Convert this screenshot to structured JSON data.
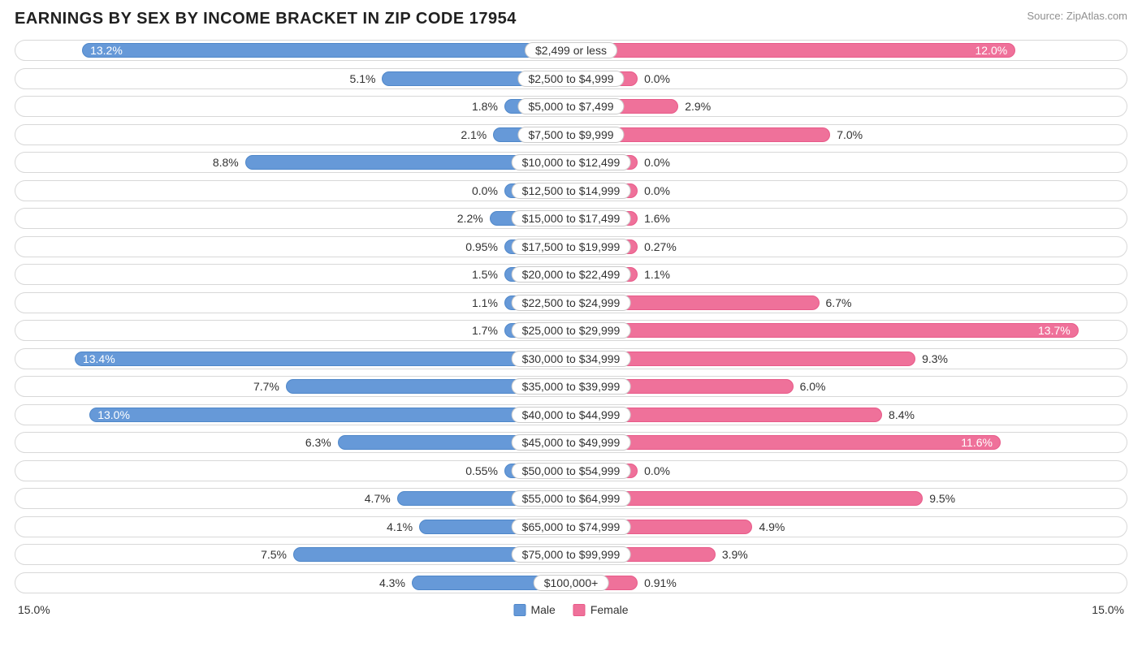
{
  "title": "EARNINGS BY SEX BY INCOME BRACKET IN ZIP CODE 17954",
  "source": "Source: ZipAtlas.com",
  "axis_max_pct": 15.0,
  "axis_label_left": "15.0%",
  "axis_label_right": "15.0%",
  "colors": {
    "male_fill": "#6699d8",
    "male_stroke": "#4f87c9",
    "female_fill": "#ef719a",
    "female_stroke": "#e85a89",
    "track_border": "#d8d8d8",
    "text": "#323232",
    "pill_border": "#cccccc",
    "background": "#ffffff"
  },
  "legend": {
    "male": "Male",
    "female": "Female"
  },
  "inside_threshold_pct": 10.0,
  "rows": [
    {
      "category": "$2,499 or less",
      "male": 13.2,
      "male_label": "13.2%",
      "female": 12.0,
      "female_label": "12.0%"
    },
    {
      "category": "$2,500 to $4,999",
      "male": 5.1,
      "male_label": "5.1%",
      "female": 0.0,
      "female_label": "0.0%"
    },
    {
      "category": "$5,000 to $7,499",
      "male": 1.8,
      "male_label": "1.8%",
      "female": 2.9,
      "female_label": "2.9%"
    },
    {
      "category": "$7,500 to $9,999",
      "male": 2.1,
      "male_label": "2.1%",
      "female": 7.0,
      "female_label": "7.0%"
    },
    {
      "category": "$10,000 to $12,499",
      "male": 8.8,
      "male_label": "8.8%",
      "female": 0.0,
      "female_label": "0.0%"
    },
    {
      "category": "$12,500 to $14,999",
      "male": 0.0,
      "male_label": "0.0%",
      "female": 0.0,
      "female_label": "0.0%"
    },
    {
      "category": "$15,000 to $17,499",
      "male": 2.2,
      "male_label": "2.2%",
      "female": 1.6,
      "female_label": "1.6%"
    },
    {
      "category": "$17,500 to $19,999",
      "male": 0.95,
      "male_label": "0.95%",
      "female": 0.27,
      "female_label": "0.27%"
    },
    {
      "category": "$20,000 to $22,499",
      "male": 1.5,
      "male_label": "1.5%",
      "female": 1.1,
      "female_label": "1.1%"
    },
    {
      "category": "$22,500 to $24,999",
      "male": 1.1,
      "male_label": "1.1%",
      "female": 6.7,
      "female_label": "6.7%"
    },
    {
      "category": "$25,000 to $29,999",
      "male": 1.7,
      "male_label": "1.7%",
      "female": 13.7,
      "female_label": "13.7%"
    },
    {
      "category": "$30,000 to $34,999",
      "male": 13.4,
      "male_label": "13.4%",
      "female": 9.3,
      "female_label": "9.3%"
    },
    {
      "category": "$35,000 to $39,999",
      "male": 7.7,
      "male_label": "7.7%",
      "female": 6.0,
      "female_label": "6.0%"
    },
    {
      "category": "$40,000 to $44,999",
      "male": 13.0,
      "male_label": "13.0%",
      "female": 8.4,
      "female_label": "8.4%"
    },
    {
      "category": "$45,000 to $49,999",
      "male": 6.3,
      "male_label": "6.3%",
      "female": 11.6,
      "female_label": "11.6%"
    },
    {
      "category": "$50,000 to $54,999",
      "male": 0.55,
      "male_label": "0.55%",
      "female": 0.0,
      "female_label": "0.0%"
    },
    {
      "category": "$55,000 to $64,999",
      "male": 4.7,
      "male_label": "4.7%",
      "female": 9.5,
      "female_label": "9.5%"
    },
    {
      "category": "$65,000 to $74,999",
      "male": 4.1,
      "male_label": "4.1%",
      "female": 4.9,
      "female_label": "4.9%"
    },
    {
      "category": "$75,000 to $99,999",
      "male": 7.5,
      "male_label": "7.5%",
      "female": 3.9,
      "female_label": "3.9%"
    },
    {
      "category": "$100,000+",
      "male": 4.3,
      "male_label": "4.3%",
      "female": 0.91,
      "female_label": "0.91%"
    }
  ]
}
